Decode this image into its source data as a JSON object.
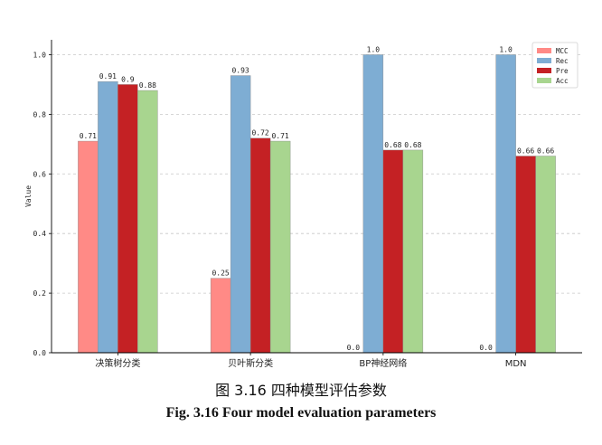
{
  "chart_data": {
    "type": "bar",
    "categories": [
      "决策树分类",
      "贝叶斯分类",
      "BP神经网络",
      "MDN"
    ],
    "series": [
      {
        "name": "MCC",
        "color": "#ff8a86",
        "values": [
          0.71,
          0.25,
          0.0,
          0.0
        ],
        "labels": [
          "0.71",
          "0.25",
          "0.0",
          "0.0"
        ]
      },
      {
        "name": "Rec",
        "color": "#7eadd3",
        "values": [
          0.91,
          0.93,
          1.0,
          1.0
        ],
        "labels": [
          "0.91",
          "0.93",
          "1.0",
          "1.0"
        ]
      },
      {
        "name": "Pre",
        "color": "#c42124",
        "values": [
          0.9,
          0.72,
          0.68,
          0.66
        ],
        "labels": [
          "0.9",
          "0.72",
          "0.68",
          "0.66"
        ]
      },
      {
        "name": "Acc",
        "color": "#a8d58f",
        "values": [
          0.88,
          0.71,
          0.68,
          0.66
        ],
        "labels": [
          "0.88",
          "0.71",
          "0.68",
          "0.66"
        ]
      }
    ],
    "ylabel": "Value",
    "xlabel": "",
    "ylim": [
      0,
      1.05
    ],
    "yticks": [
      "0.0",
      "0.2",
      "0.4",
      "0.6",
      "0.8",
      "1.0"
    ],
    "grid": "y-dashed",
    "legend": "top-right"
  },
  "caption": {
    "chinese": "图 3.16  四种模型评估参数",
    "english": "Fig. 3.16 Four model evaluation parameters"
  }
}
